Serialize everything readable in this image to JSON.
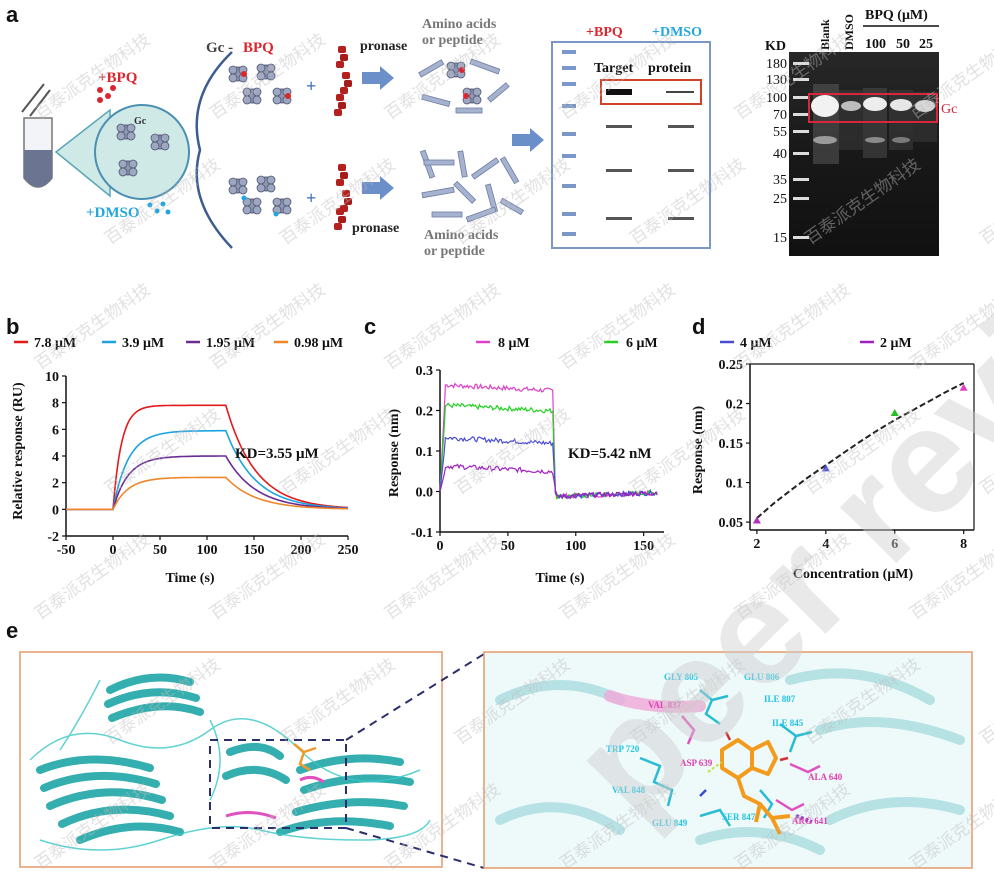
{
  "panels": {
    "a": "a",
    "b": "b",
    "c": "c",
    "d": "d",
    "e": "e"
  },
  "schematic": {
    "plus_bpq": "+BPQ",
    "plus_dmso": "+DMSO",
    "gc": "Gc",
    "gc_bpq_prefix": "Gc -",
    "gc_bpq_suffix": "BPQ",
    "pronase": "pronase",
    "plus_sign": "+",
    "amino_line1": "Amino acids",
    "amino_line2": "or peptide",
    "gel_plus_bpq": "+BPQ",
    "gel_plus_dmso": "+DMSO",
    "target": "Target",
    "protein": "protein"
  },
  "western_blot": {
    "kd_label": "KD",
    "markers": [
      "180",
      "130",
      "100",
      "70",
      "55",
      "40",
      "35",
      "25",
      "15"
    ],
    "lanes": [
      "Blank",
      "DMSO",
      "100",
      "50",
      "25"
    ],
    "bpq_header": "BPQ (μM)",
    "band_label": "Gc",
    "colors": {
      "box": "#d6283a"
    }
  },
  "chart_data": [
    {
      "type": "line",
      "panel": "b",
      "series": [
        {
          "name": "7.8 μM",
          "color": "#e31a1c",
          "plateau": 7.8
        },
        {
          "name": "3.9 μM",
          "color": "#1ba3e0",
          "plateau": 5.9
        },
        {
          "name": "1.95 μM",
          "color": "#6a2c91",
          "plateau": 4.0
        },
        {
          "name": "0.98 μM",
          "color": "#f0862a",
          "plateau": 2.4
        }
      ],
      "association_start": 0,
      "dissociation_start": 120,
      "xlabel": "Time (s)",
      "ylabel": "Relative response (RU)",
      "xlim": [
        -50,
        250
      ],
      "ylim": [
        -2,
        10
      ],
      "xticks": [
        "-50",
        "0",
        "50",
        "100",
        "150",
        "200",
        "250"
      ],
      "yticks": [
        "-2",
        "0",
        "2",
        "4",
        "6",
        "8",
        "10"
      ],
      "annotation": "KD=3.55  μM"
    },
    {
      "type": "line",
      "panel": "c",
      "series": [
        {
          "name": "8 μM",
          "color": "#e040c8",
          "level": 0.255
        },
        {
          "name": "6 μM",
          "color": "#22d022",
          "level": 0.205
        },
        {
          "name": "4 μM",
          "color": "#4a4ad8",
          "level": 0.125
        },
        {
          "name": "2 μM",
          "color": "#a020c0",
          "level": 0.055
        }
      ],
      "dissociation_start": 83,
      "xlabel": "Time (s)",
      "ylabel": "Response (nm)",
      "xlim": [
        0,
        165
      ],
      "ylim": [
        -0.1,
        0.3
      ],
      "xticks": [
        "0",
        "50",
        "100",
        "150"
      ],
      "yticks": [
        "-0.1",
        "0.0",
        "0.1",
        "0.2",
        "0.3"
      ],
      "annotation": "KD=5.42  nM"
    },
    {
      "type": "scatter",
      "panel": "d",
      "x": [
        2,
        4,
        6,
        8
      ],
      "y": [
        0.052,
        0.118,
        0.188,
        0.22
      ],
      "point_colors": [
        "#b030c0",
        "#4a4ad8",
        "#22c022",
        "#e040c8"
      ],
      "fit_x": [
        2,
        2.5,
        3,
        3.5,
        4,
        4.5,
        5,
        5.5,
        6,
        6.5,
        7,
        7.5,
        8
      ],
      "fit_y": [
        0.055,
        0.074,
        0.091,
        0.107,
        0.122,
        0.137,
        0.152,
        0.166,
        0.179,
        0.191,
        0.203,
        0.215,
        0.226
      ],
      "xlabel": "Concentration (μM)",
      "ylabel": "Response (nm)",
      "xlim": [
        1.8,
        8.3
      ],
      "ylim": [
        0.04,
        0.25
      ],
      "xticks": [
        "2",
        "4",
        "6",
        "8"
      ],
      "yticks": [
        "0.05",
        "0.1",
        "0.15",
        "0.2",
        "0.25"
      ]
    }
  ],
  "residues": [
    {
      "label": "GLY 805",
      "color": "#1fc6e6"
    },
    {
      "label": "GLU 806",
      "color": "#1fc6e6"
    },
    {
      "label": "ILE 807",
      "color": "#1fc6e6"
    },
    {
      "label": "VAL 837",
      "color": "#e040b0"
    },
    {
      "label": "ILE 845",
      "color": "#1fc6e6"
    },
    {
      "label": "TRP 720",
      "color": "#1fc6e6"
    },
    {
      "label": "ASP 639",
      "color": "#e040b0"
    },
    {
      "label": "ALA 640",
      "color": "#e040b0"
    },
    {
      "label": "VAL 848",
      "color": "#1fc6e6"
    },
    {
      "label": "SER 847",
      "color": "#1fc6e6"
    },
    {
      "label": "ARG 641",
      "color": "#e040b0"
    },
    {
      "label": "GLU 849",
      "color": "#1fc6e6"
    }
  ],
  "watermark": {
    "text": "百泰派克生物科技",
    "big": "peer review"
  }
}
